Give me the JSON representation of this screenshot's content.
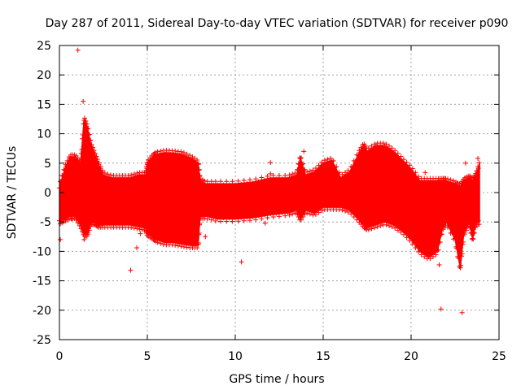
{
  "chart_data": {
    "type": "scatter",
    "title": "Day 287 of 2011, Sidereal Day-to-day VTEC variation (SDTVAR) for receiver p090",
    "xlabel": "GPS time / hours",
    "ylabel": "SDTVAR / TECUs",
    "xlim": [
      0,
      25
    ],
    "ylim": [
      -25,
      25
    ],
    "xticks": [
      0,
      5,
      10,
      15,
      20,
      25
    ],
    "yticks": [
      -25,
      -20,
      -15,
      -10,
      -5,
      0,
      5,
      10,
      15,
      20,
      25
    ],
    "grid": true,
    "marker": "+",
    "color": "#ff0000",
    "envelope": {
      "x": [
        0.0,
        0.3,
        0.6,
        0.9,
        1.2,
        1.4,
        1.6,
        1.8,
        2.0,
        2.2,
        2.5,
        3.0,
        3.5,
        4.0,
        4.5,
        4.9,
        5.0,
        5.3,
        5.5,
        6.0,
        6.5,
        7.0,
        7.5,
        7.9,
        8.0,
        8.3,
        9.0,
        10.0,
        11.0,
        12.0,
        13.0,
        13.5,
        13.7,
        14.0,
        14.5,
        15.0,
        15.5,
        16.0,
        16.5,
        17.0,
        17.3,
        17.5,
        18.0,
        18.5,
        19.0,
        19.5,
        20.0,
        20.5,
        21.0,
        21.5,
        21.8,
        22.0,
        22.5,
        22.8,
        23.0,
        23.3,
        23.5,
        23.7,
        23.9
      ],
      "upper": [
        1.0,
        4.0,
        6.0,
        6.0,
        5.0,
        12.5,
        11.0,
        8.0,
        6.5,
        5.0,
        3.0,
        2.5,
        2.5,
        2.5,
        3.0,
        3.0,
        5.0,
        6.0,
        6.5,
        6.8,
        6.7,
        6.5,
        5.8,
        5.0,
        2.0,
        1.5,
        1.5,
        1.5,
        1.8,
        2.5,
        2.5,
        3.0,
        6.0,
        3.0,
        3.5,
        5.0,
        5.5,
        2.5,
        3.5,
        6.5,
        8.0,
        7.0,
        8.0,
        8.0,
        7.0,
        5.5,
        4.0,
        2.0,
        2.0,
        2.0,
        2.0,
        2.0,
        1.5,
        1.0,
        2.0,
        2.5,
        2.0,
        3.0,
        5.0
      ],
      "lower": [
        -5.0,
        -4.5,
        -4.0,
        -4.0,
        -5.5,
        -7.0,
        -7.0,
        -5.0,
        -5.0,
        -5.5,
        -5.5,
        -5.5,
        -5.5,
        -5.5,
        -5.8,
        -6.0,
        -7.0,
        -7.5,
        -8.0,
        -8.5,
        -8.5,
        -8.8,
        -9.0,
        -9.0,
        -4.0,
        -4.0,
        -4.5,
        -4.5,
        -4.3,
        -3.8,
        -3.5,
        -3.0,
        -4.5,
        -3.0,
        -3.5,
        -2.5,
        -2.5,
        -2.5,
        -3.0,
        -4.5,
        -5.5,
        -6.0,
        -5.5,
        -5.0,
        -5.5,
        -6.5,
        -8.0,
        -10.0,
        -11.0,
        -10.0,
        -6.0,
        -5.0,
        -8.0,
        -13.0,
        -7.0,
        -5.0,
        -8.0,
        -5.0,
        -5.0
      ]
    },
    "outliers": [
      {
        "x": 1.05,
        "y": 24.2
      },
      {
        "x": 1.35,
        "y": 15.5
      },
      {
        "x": 4.05,
        "y": -13.2
      },
      {
        "x": 4.4,
        "y": -9.4
      },
      {
        "x": 8.3,
        "y": -7.5
      },
      {
        "x": 10.35,
        "y": -11.8
      },
      {
        "x": 12.0,
        "y": 5.1
      },
      {
        "x": 21.7,
        "y": -19.8
      },
      {
        "x": 22.9,
        "y": -20.4
      },
      {
        "x": 23.1,
        "y": 5.0
      },
      {
        "x": 21.6,
        "y": -12.3
      },
      {
        "x": 13.9,
        "y": 7.0
      },
      {
        "x": 12.0,
        "y": 3.2
      },
      {
        "x": 11.7,
        "y": -5.2
      },
      {
        "x": 4.6,
        "y": -7.0
      },
      {
        "x": 1.4,
        "y": -8.0
      },
      {
        "x": 0.05,
        "y": -8.0
      },
      {
        "x": 0.7,
        "y": -4.5
      },
      {
        "x": 20.8,
        "y": 3.4
      },
      {
        "x": 23.8,
        "y": 5.8
      }
    ]
  }
}
